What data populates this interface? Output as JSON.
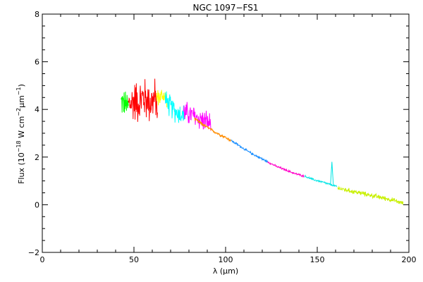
{
  "chart_data": {
    "type": "line",
    "title": "NGC 1097−FS1",
    "xlabel": "λ (μm)",
    "ylabel_parts": [
      "Flux (10",
      "−18",
      " W cm",
      "−2",
      "μm",
      "−1",
      ")"
    ],
    "xlim": [
      0,
      200
    ],
    "ylim": [
      -2,
      8
    ],
    "xticks": [
      0,
      50,
      100,
      150,
      200
    ],
    "xtick_labels": [
      "0",
      "50",
      "100",
      "150",
      "200"
    ],
    "yticks": [
      -2,
      0,
      2,
      4,
      6,
      8
    ],
    "ytick_labels": [
      "−2",
      "0",
      "2",
      "4",
      "6",
      "8"
    ],
    "grid": false,
    "legend": "none",
    "series": [
      {
        "color": "#00ff00",
        "noise": 0.55,
        "x": [
          43,
          44,
          45,
          46,
          47
        ],
        "y": [
          4.3,
          4.3,
          4.2,
          4.2,
          4.1
        ]
      },
      {
        "color": "#ff0000",
        "noise": 0.85,
        "x": [
          47,
          49,
          51,
          53,
          55,
          57,
          59,
          61,
          63
        ],
        "y": [
          4.2,
          4.3,
          4.4,
          4.3,
          4.5,
          4.4,
          4.3,
          4.4,
          4.3
        ]
      },
      {
        "color": "#ffff00",
        "noise": 0.35,
        "x": [
          62,
          64,
          66,
          68
        ],
        "y": [
          4.5,
          4.5,
          4.6,
          4.5
        ]
      },
      {
        "color": "#00ffff",
        "noise": 0.45,
        "x": [
          67,
          70,
          73,
          76,
          78
        ],
        "y": [
          4.4,
          4.1,
          3.9,
          3.8,
          3.7
        ]
      },
      {
        "color": "#ff00ff",
        "noise": 0.45,
        "x": [
          77,
          80,
          83,
          86,
          89,
          92
        ],
        "y": [
          3.9,
          3.8,
          3.7,
          3.6,
          3.5,
          3.4
        ]
      },
      {
        "color": "#ff8c00",
        "noise": 0.06,
        "x": [
          83,
          88,
          93,
          98,
          103
        ],
        "y": [
          3.6,
          3.35,
          3.1,
          2.9,
          2.7
        ]
      },
      {
        "color": "#1e90ff",
        "noise": 0.05,
        "x": [
          103,
          108,
          113,
          118,
          123
        ],
        "y": [
          2.7,
          2.45,
          2.2,
          2.0,
          1.8
        ]
      },
      {
        "color": "#ff00c8",
        "noise": 0.04,
        "x": [
          123,
          128,
          133,
          138,
          143
        ],
        "y": [
          1.8,
          1.6,
          1.45,
          1.3,
          1.2
        ]
      },
      {
        "color": "#00e5e5",
        "noise": 0.04,
        "x": [
          143,
          148,
          153,
          157,
          161
        ],
        "y": [
          1.2,
          1.05,
          0.95,
          0.85,
          0.75
        ]
      },
      {
        "color": "#c8f000",
        "noise": 0.09,
        "x": [
          161,
          167,
          173,
          179,
          185,
          191,
          197
        ],
        "y": [
          0.7,
          0.6,
          0.5,
          0.4,
          0.3,
          0.2,
          0.05
        ]
      }
    ],
    "line_feature": {
      "x": 158,
      "peak": 1.8,
      "color": "#00e5e5"
    }
  }
}
